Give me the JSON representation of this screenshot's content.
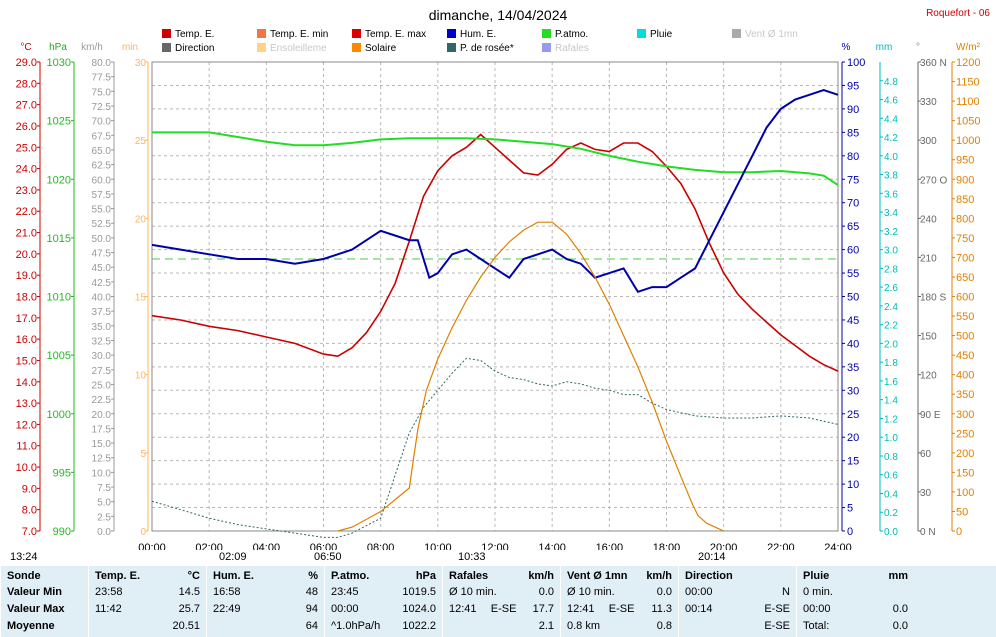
{
  "header": {
    "title": "dimanche, 14/04/2024",
    "station": "Roquefort - 06"
  },
  "colors": {
    "temp": "#cc0000",
    "pressure": "#22dd22",
    "humidity": "#0000aa",
    "dewpoint": "#336666",
    "solar": "#e08000",
    "sunshine": "#ffd28a",
    "gust": "#7777dd",
    "wind": "#aaaaaa",
    "direction": "#555555"
  },
  "legend": [
    {
      "label": "Temp. E.",
      "color": "#cc0000",
      "muted": false
    },
    {
      "label": "Temp. E. min",
      "color": "#ee7744",
      "muted": false
    },
    {
      "label": "Temp. E. max",
      "color": "#dd0000",
      "muted": false
    },
    {
      "label": "Hum. E.",
      "color": "#0000cc",
      "muted": false
    },
    {
      "label": "P.atmo.",
      "color": "#22dd22",
      "muted": false
    },
    {
      "label": "Pluie",
      "color": "#00dddd",
      "muted": false
    },
    {
      "label": "Vent Ø 1mn",
      "color": "#aaaaaa",
      "muted": true
    },
    {
      "label": "Direction",
      "color": "#666666",
      "muted": false
    },
    {
      "label": "Ensoleilleme",
      "color": "#ffd28a",
      "muted": true
    },
    {
      "label": "Solaire",
      "color": "#ff8800",
      "muted": false
    },
    {
      "label": "P. de rosée*",
      "color": "#336666",
      "muted": false
    },
    {
      "label": "Rafales",
      "color": "#9999ee",
      "muted": true
    }
  ],
  "units": {
    "temp": "°C",
    "pressure": "hPa",
    "wind": "km/h",
    "sun": "min",
    "hum": "%",
    "rain": "mm",
    "dir": "°",
    "solar": "W/m²"
  },
  "chart_data": {
    "type": "line",
    "x_label_ticks": [
      "00:00",
      "02:00",
      "04:00",
      "06:00",
      "08:00",
      "10:00",
      "12:00",
      "14:00",
      "16:00",
      "18:00",
      "20:00",
      "22:00",
      "24:00"
    ],
    "axes": {
      "temp": {
        "min": 7,
        "max": 29,
        "ticks": [
          "29.0",
          "28.0",
          "27.0",
          "26.0",
          "25.0",
          "24.0",
          "23.0",
          "22.0",
          "21.0",
          "20.0",
          "19.0",
          "18.0",
          "17.0",
          "16.0",
          "15.0",
          "14.0",
          "13.0",
          "12.0",
          "11.0",
          "10.0",
          "9.0",
          "8.0",
          "7.0"
        ]
      },
      "pressure": {
        "min": 990,
        "max": 1030,
        "ticks": [
          "1030",
          "1025",
          "1020",
          "1015",
          "1010",
          "1005",
          "1000",
          "995",
          "990"
        ]
      },
      "wind": {
        "min": 0,
        "max": 80,
        "ticks": [
          "80.0",
          "77.5",
          "75.0",
          "72.5",
          "70.0",
          "67.5",
          "65.0",
          "62.5",
          "60.0",
          "57.5",
          "55.0",
          "52.5",
          "50.0",
          "47.5",
          "45.0",
          "42.5",
          "40.0",
          "37.5",
          "35.0",
          "32.5",
          "30.0",
          "27.5",
          "25.0",
          "22.5",
          "20.0",
          "17.5",
          "15.0",
          "12.5",
          "10.0",
          "7.5",
          "5.0",
          "2.5",
          "0.0"
        ]
      },
      "sun": {
        "min": 0,
        "max": 30,
        "ticks": [
          "30",
          "25",
          "20",
          "15",
          "10",
          "5",
          "0"
        ]
      },
      "hum": {
        "min": 0,
        "max": 100,
        "ticks": [
          "100",
          "95",
          "90",
          "85",
          "80",
          "75",
          "70",
          "65",
          "60",
          "55",
          "50",
          "45",
          "40",
          "35",
          "30",
          "25",
          "20",
          "15",
          "10",
          "5",
          "0"
        ]
      },
      "rain": {
        "min": 0,
        "max": 5,
        "ticks": [
          "4.8",
          "4.6",
          "4.4",
          "4.2",
          "4.0",
          "3.8",
          "3.6",
          "3.4",
          "3.2",
          "3.0",
          "2.8",
          "2.6",
          "2.4",
          "2.2",
          "2.0",
          "1.8",
          "1.6",
          "1.4",
          "1.2",
          "1.0",
          "0.8",
          "0.6",
          "0.4",
          "0.2",
          "0.0"
        ]
      },
      "dir": {
        "min": 0,
        "max": 360,
        "ticks": [
          "360 N",
          "330",
          "300",
          "270 O",
          "240",
          "210",
          "180 S",
          "150",
          "120",
          "90 E",
          "60",
          "30",
          "0 N"
        ]
      },
      "solar": {
        "min": 0,
        "max": 1200,
        "ticks": [
          "1200",
          "1150",
          "1100",
          "1050",
          "1000",
          "950",
          "900",
          "850",
          "800",
          "750",
          "700",
          "650",
          "600",
          "550",
          "500",
          "450",
          "400",
          "350",
          "300",
          "250",
          "200",
          "150",
          "100",
          "50",
          "0"
        ]
      }
    },
    "series": [
      {
        "name": "Temp. E.",
        "unit": "°C",
        "x": [
          0,
          1,
          2,
          3,
          4,
          5,
          6,
          6.5,
          7,
          7.5,
          8,
          8.5,
          9,
          9.5,
          10,
          10.5,
          11,
          11.5,
          12,
          12.5,
          13,
          13.5,
          14,
          14.5,
          15,
          15.5,
          16,
          16.5,
          17,
          17.5,
          18,
          18.5,
          19,
          19.5,
          20,
          20.5,
          21,
          21.5,
          22,
          22.5,
          23,
          23.5,
          24
        ],
        "y": [
          17.1,
          16.9,
          16.6,
          16.4,
          16.1,
          15.8,
          15.3,
          15.2,
          15.6,
          16.3,
          17.3,
          18.6,
          20.6,
          22.7,
          23.9,
          24.6,
          25.0,
          25.6,
          25.0,
          24.4,
          23.8,
          23.7,
          24.2,
          24.9,
          25.2,
          24.9,
          24.8,
          25.2,
          25.2,
          24.8,
          24.1,
          23.3,
          22.1,
          20.5,
          19.1,
          18.1,
          17.4,
          16.8,
          16.2,
          15.7,
          15.2,
          14.8,
          14.5
        ]
      },
      {
        "name": "P.atmo.",
        "unit": "hPa",
        "x": [
          0,
          2,
          3,
          4,
          5,
          6,
          7,
          8,
          9,
          10,
          11,
          12,
          13,
          14,
          15,
          16,
          17,
          18,
          19,
          20,
          21,
          22,
          23,
          23.5,
          24
        ],
        "y": [
          1024.0,
          1024.0,
          1023.6,
          1023.2,
          1022.9,
          1022.9,
          1023.1,
          1023.4,
          1023.5,
          1023.5,
          1023.5,
          1023.4,
          1023.2,
          1023.0,
          1022.6,
          1022.0,
          1021.5,
          1021.1,
          1020.8,
          1020.6,
          1020.6,
          1020.7,
          1020.5,
          1020.3,
          1019.5
        ]
      },
      {
        "name": "Hum. E.",
        "unit": "%",
        "x": [
          0,
          1,
          2,
          3,
          4,
          5,
          6,
          7,
          7.5,
          8,
          8.5,
          9,
          9.3,
          9.7,
          10,
          10.5,
          11,
          11.5,
          12,
          12.5,
          13,
          13.5,
          14,
          14.5,
          15,
          15.5,
          16,
          16.5,
          17,
          17.5,
          18,
          18.5,
          19,
          19.5,
          20,
          20.5,
          21,
          21.5,
          22,
          22.5,
          23,
          23.5,
          24
        ],
        "y": [
          61,
          60,
          59,
          58,
          58,
          57,
          58,
          60,
          62,
          64,
          63,
          62,
          62,
          54,
          55,
          59,
          60,
          58,
          56,
          54,
          58,
          59,
          60,
          58,
          57,
          54,
          55,
          56,
          51,
          52,
          52,
          54,
          56,
          62,
          68,
          74,
          80,
          86,
          90,
          92,
          93,
          94,
          93
        ]
      },
      {
        "name": "P. de rosée*",
        "unit": "°C",
        "x": [
          0,
          1,
          2,
          3,
          4,
          5,
          6,
          6.5,
          7,
          8,
          9,
          9.5,
          10,
          10.5,
          11,
          11.5,
          12,
          12.5,
          13,
          13.5,
          14,
          14.5,
          15,
          15.5,
          16,
          16.5,
          17,
          17.5,
          18,
          19,
          20,
          21,
          22,
          23,
          24
        ],
        "y": [
          8.4,
          8.0,
          7.6,
          7.3,
          7.1,
          6.9,
          6.7,
          6.7,
          6.9,
          7.6,
          11.6,
          12.8,
          13.6,
          14.4,
          15.1,
          15.0,
          14.5,
          14.2,
          14.1,
          13.9,
          13.8,
          14.0,
          13.9,
          13.7,
          13.6,
          13.4,
          13.4,
          13.0,
          12.7,
          12.4,
          12.3,
          12.3,
          12.4,
          12.3,
          12.0
        ]
      },
      {
        "name": "Solaire",
        "unit": "W/m²",
        "x": [
          6.5,
          7,
          8,
          9,
          9.1,
          9.3,
          9.6,
          10,
          10.5,
          11,
          11.5,
          12,
          12.5,
          13,
          13.5,
          14,
          14.5,
          15,
          15.5,
          16,
          16.5,
          17,
          17.5,
          18,
          18.5,
          18.9,
          19.1,
          19.4,
          20
        ],
        "y": [
          0,
          10,
          50,
          110,
          160,
          260,
          360,
          440,
          520,
          590,
          650,
          700,
          740,
          770,
          790,
          790,
          760,
          710,
          650,
          580,
          500,
          420,
          330,
          230,
          140,
          70,
          40,
          20,
          0
        ]
      }
    ],
    "reference_line": {
      "axis": "hum",
      "value": 58
    },
    "time_markers": [
      "13:24",
      "02:09",
      "06:50",
      "10:33",
      "20:14"
    ]
  },
  "stats": {
    "columns": [
      {
        "title": "Sonde",
        "unit": "",
        "rows": [
          [
            "Valeur Min",
            "",
            ""
          ],
          [
            "Valeur Max",
            "",
            ""
          ],
          [
            "Moyenne",
            "",
            ""
          ]
        ]
      },
      {
        "title": "Temp. E.",
        "unit": "°C",
        "rows": [
          [
            "23:58",
            "",
            "14.5"
          ],
          [
            "11:42",
            "",
            "25.7"
          ],
          [
            "",
            "",
            "20.51"
          ]
        ]
      },
      {
        "title": "Hum. E.",
        "unit": "%",
        "rows": [
          [
            "16:58",
            "",
            "48"
          ],
          [
            "22:49",
            "",
            "94"
          ],
          [
            "",
            "",
            "64"
          ]
        ]
      },
      {
        "title": "P.atmo.",
        "unit": "hPa",
        "rows": [
          [
            "23:45",
            "",
            "1019.5"
          ],
          [
            "00:00",
            "",
            "1024.0"
          ],
          [
            "^1.0hPa/h",
            "",
            "1022.2"
          ]
        ]
      },
      {
        "title": "Rafales",
        "unit": "km/h",
        "rows": [
          [
            "Ø 10 min.",
            "",
            "0.0"
          ],
          [
            "12:41",
            "E-SE",
            "17.7"
          ],
          [
            "",
            "",
            "2.1"
          ]
        ]
      },
      {
        "title": "Vent Ø 1mn",
        "unit": "km/h",
        "rows": [
          [
            "Ø 10 min.",
            "",
            "0.0"
          ],
          [
            "12:41",
            "E-SE",
            "11.3"
          ],
          [
            "0.8 km",
            "",
            "0.8"
          ]
        ]
      },
      {
        "title": "Direction",
        "unit": "",
        "rows": [
          [
            "00:00",
            "",
            "N"
          ],
          [
            "00:14",
            "",
            "E-SE"
          ],
          [
            "",
            "",
            "E-SE"
          ]
        ]
      },
      {
        "title": "Pluie",
        "unit": "mm",
        "rows": [
          [
            "0 min.",
            "",
            ""
          ],
          [
            "00:00",
            "",
            "0.0"
          ],
          [
            "Total:",
            "",
            "0.0"
          ]
        ]
      }
    ]
  }
}
